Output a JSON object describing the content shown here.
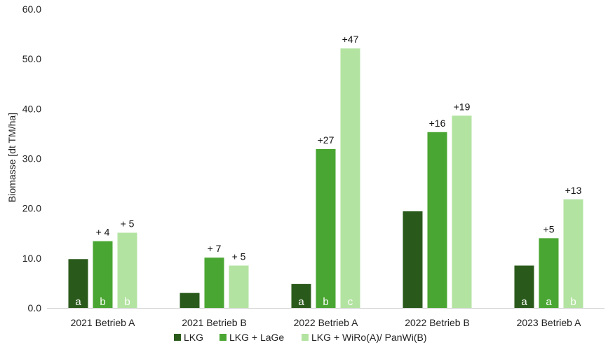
{
  "chart_data": {
    "type": "bar",
    "ylabel": "Biomasse [dt TM/ha]",
    "xlabel": "",
    "ylim": [
      0,
      60
    ],
    "yticks": [
      "0.0",
      "10.0",
      "20.0",
      "30.0",
      "40.0",
      "50.0",
      "60.0"
    ],
    "grid": false,
    "legend_position": "bottom",
    "categories": [
      "2021 Betrieb A",
      "2021 Betrieb B",
      "2022 Betrieb A",
      "2022 Betrieb B",
      "2023 Betrieb A"
    ],
    "series": [
      {
        "name": "LKG",
        "color": "#2a5a1b",
        "values": [
          9.8,
          3.0,
          4.8,
          19.4,
          8.5
        ],
        "labels": [
          "",
          "",
          "",
          "",
          ""
        ],
        "letters": [
          "a",
          "",
          "a",
          "",
          "a"
        ]
      },
      {
        "name": "LKG + LaGe",
        "color": "#4aa632",
        "values": [
          13.4,
          10.1,
          31.9,
          35.3,
          14.0
        ],
        "labels": [
          "+ 4",
          "+ 7",
          "+27",
          "+16",
          "+5"
        ],
        "letters": [
          "b",
          "",
          "b",
          "",
          "a"
        ]
      },
      {
        "name": "LKG + WiRo(A)/ PanWi(B)",
        "color": "#b3e3a1",
        "values": [
          15.1,
          8.5,
          52.1,
          38.6,
          21.8
        ],
        "labels": [
          "+ 5",
          "+ 5",
          "+47",
          "+19",
          "+13"
        ],
        "letters": [
          "b",
          "",
          "c",
          "",
          "b"
        ]
      }
    ]
  }
}
